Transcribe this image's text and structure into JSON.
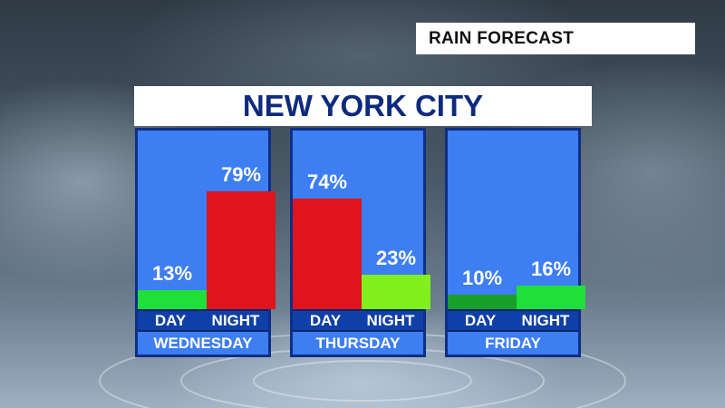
{
  "header": {
    "label": "RAIN FORECAST"
  },
  "city": "NEW YORK CITY",
  "colors": {
    "high": "#e0141c",
    "lime": "#7ff01c",
    "low_light": "#1fe03a",
    "low_dark": "#19a02a",
    "panel": "#3d7ef2"
  },
  "chart_data": {
    "type": "bar",
    "title": "NEW YORK CITY",
    "ylim": [
      0,
      100
    ],
    "groups": [
      {
        "day": "WEDNESDAY",
        "bars": [
          {
            "period": "DAY",
            "value": 13,
            "label": "13%",
            "color": "#1fe03a"
          },
          {
            "period": "NIGHT",
            "value": 79,
            "label": "79%",
            "color": "#e0141c"
          }
        ]
      },
      {
        "day": "THURSDAY",
        "bars": [
          {
            "period": "DAY",
            "value": 74,
            "label": "74%",
            "color": "#e0141c"
          },
          {
            "period": "NIGHT",
            "value": 23,
            "label": "23%",
            "color": "#7ff01c"
          }
        ]
      },
      {
        "day": "FRIDAY",
        "bars": [
          {
            "period": "DAY",
            "value": 10,
            "label": "10%",
            "color": "#19a02a"
          },
          {
            "period": "NIGHT",
            "value": 16,
            "label": "16%",
            "color": "#1fe03a"
          }
        ]
      }
    ]
  }
}
